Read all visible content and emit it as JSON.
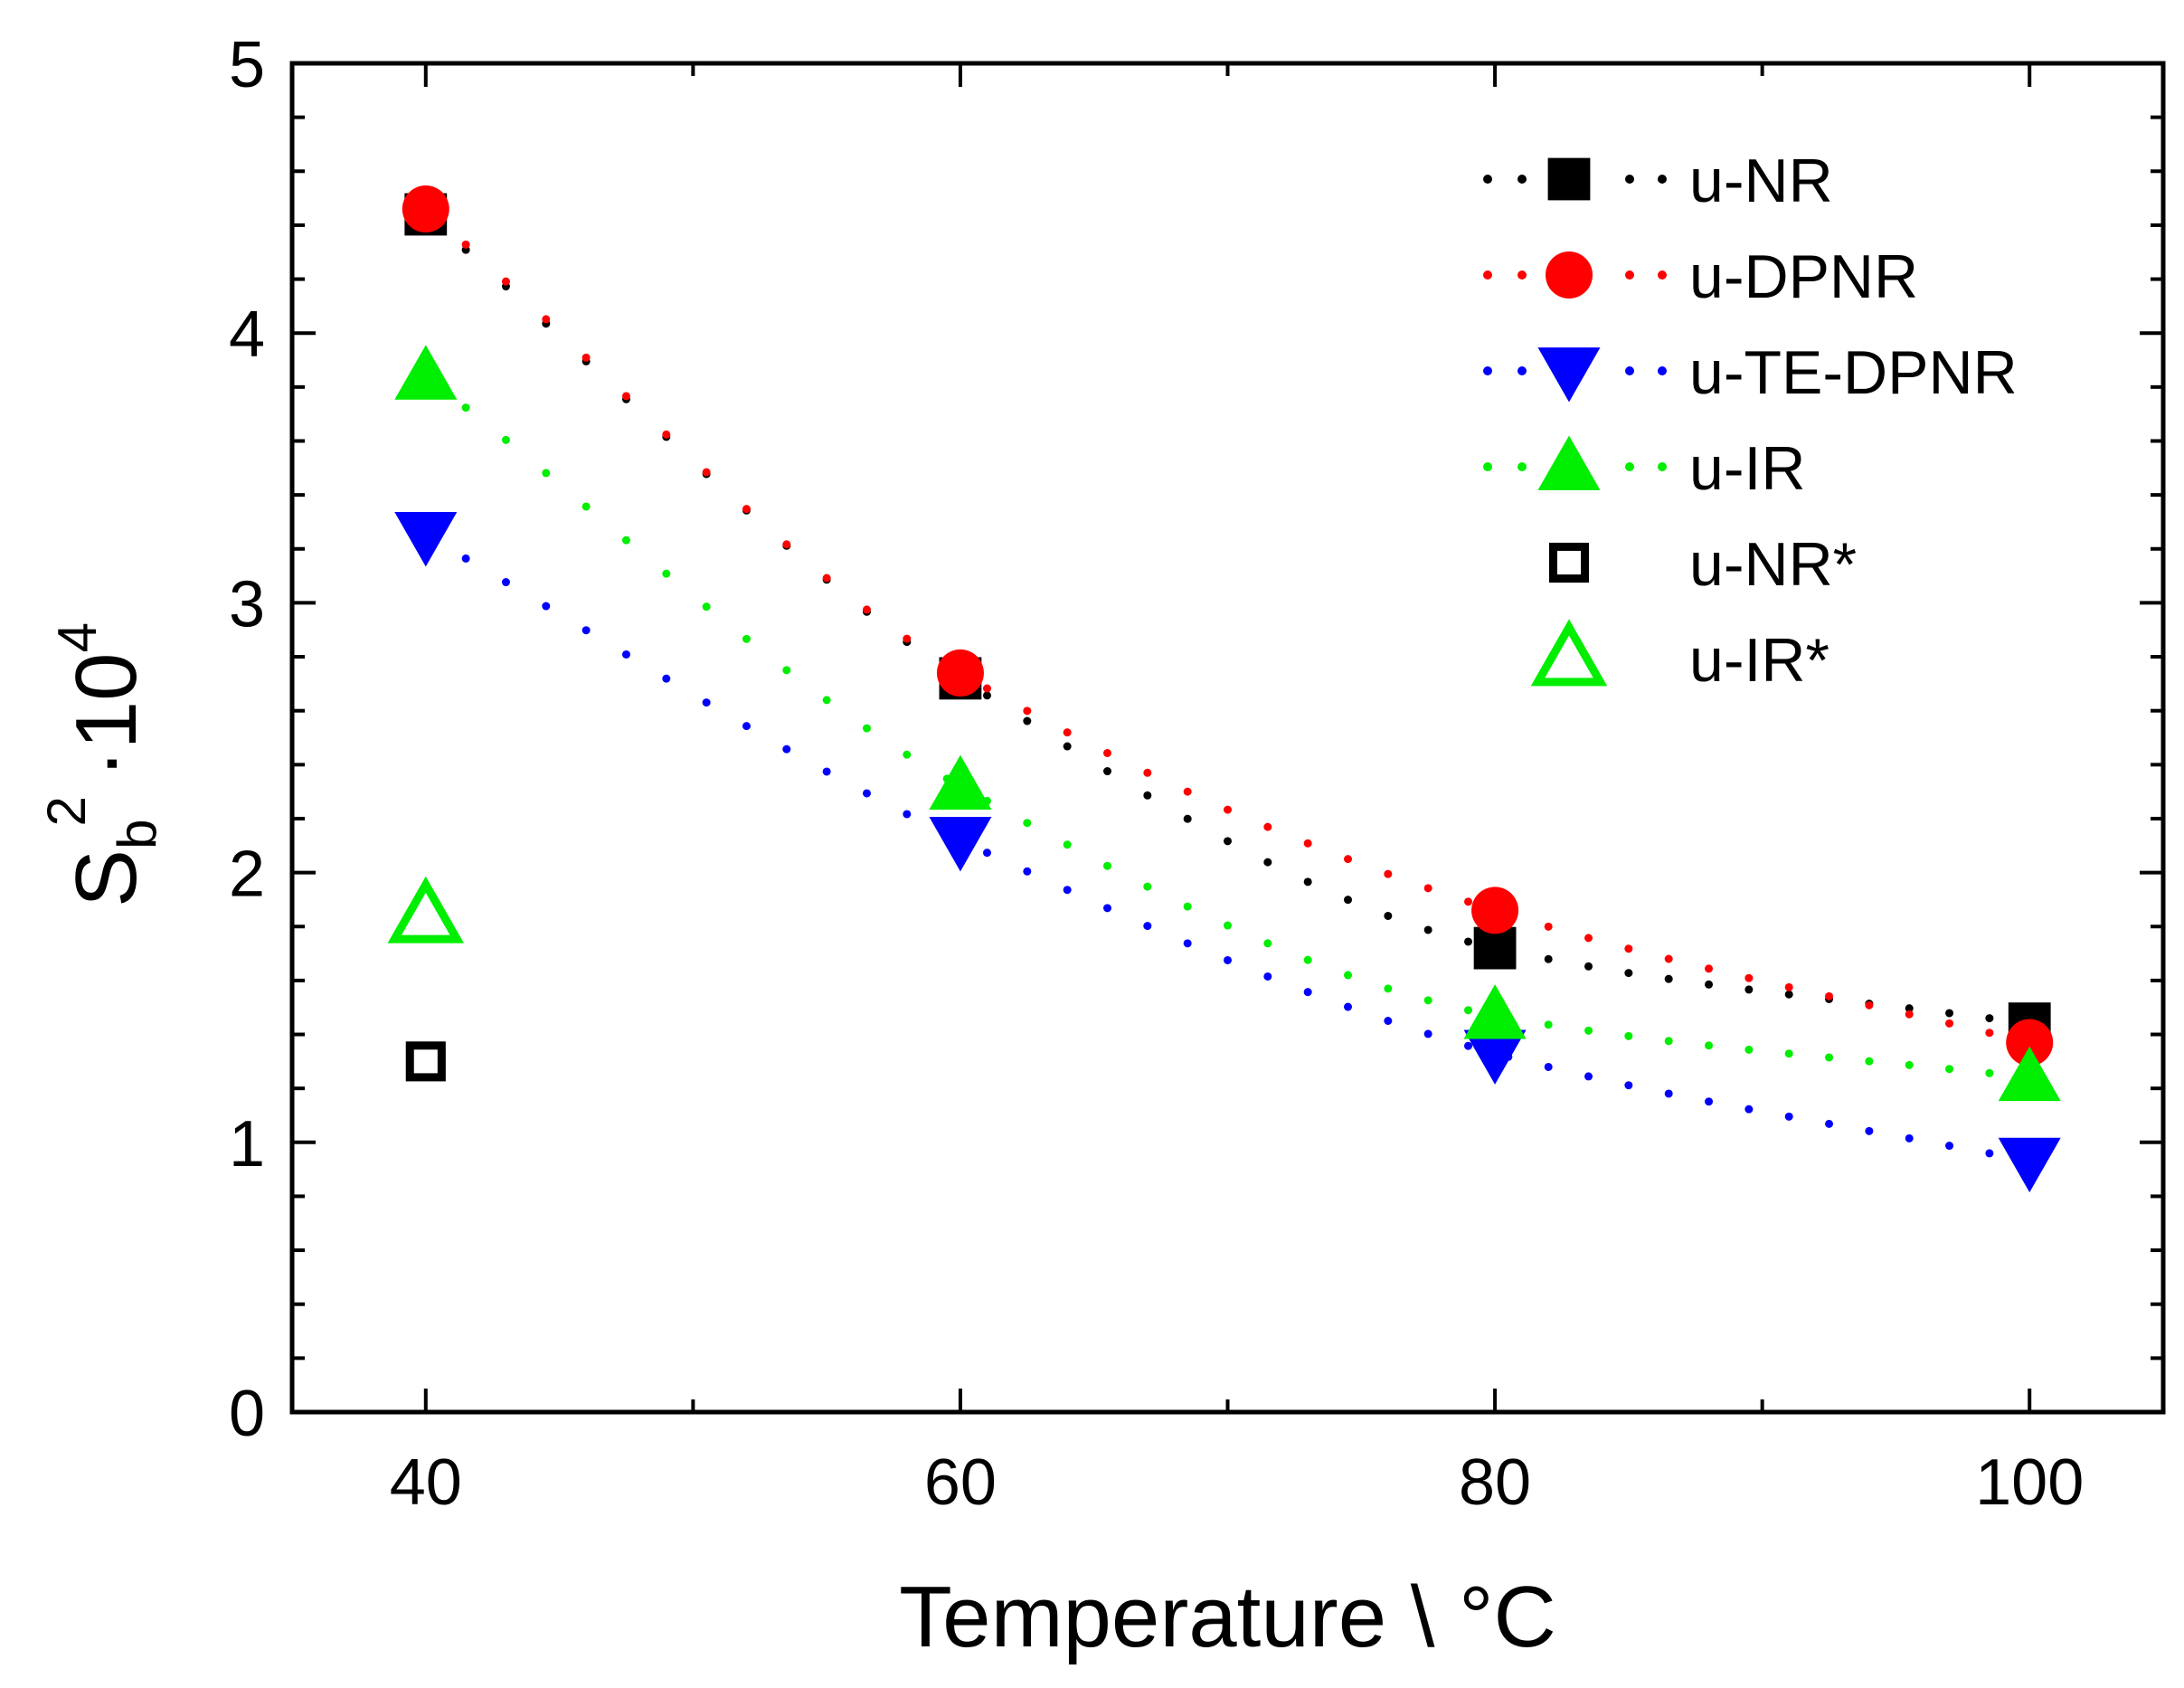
{
  "chart_data": {
    "type": "scatter",
    "xlabel": "Temperature \\ °C",
    "ylabel": {
      "base": "S",
      "subscript": "b",
      "superscript": "2",
      "factor": "·10",
      "factor_exp": "4"
    },
    "xlim": [
      35,
      105
    ],
    "ylim": [
      0,
      5
    ],
    "x_ticks": [
      40,
      60,
      80,
      100
    ],
    "y_ticks": [
      0,
      1,
      2,
      3,
      4,
      5
    ],
    "grid": false,
    "legend_position": "top-right",
    "series": [
      {
        "name": "u-NR",
        "x": [
          40,
          60,
          80,
          100
        ],
        "y": [
          4.44,
          2.72,
          1.72,
          1.44
        ],
        "marker": "square",
        "filled": true,
        "color": "#000000",
        "line": "dotted"
      },
      {
        "name": "u-DPNR",
        "x": [
          40,
          60,
          80,
          100
        ],
        "y": [
          4.46,
          2.74,
          1.86,
          1.37
        ],
        "marker": "circle",
        "filled": true,
        "color": "#ff0000",
        "line": "dotted"
      },
      {
        "name": "u-TE-DPNR",
        "x": [
          40,
          60,
          80,
          100
        ],
        "y": [
          3.25,
          2.12,
          1.33,
          0.93
        ],
        "marker": "triangle-down",
        "filled": true,
        "color": "#0000ff",
        "line": "dotted"
      },
      {
        "name": "u-IR",
        "x": [
          40,
          60,
          80,
          100
        ],
        "y": [
          3.84,
          2.32,
          1.47,
          1.24
        ],
        "marker": "triangle-up",
        "filled": true,
        "color": "#00ee00",
        "line": "dotted"
      },
      {
        "name": "u-NR*",
        "x": [
          40
        ],
        "y": [
          1.3
        ],
        "marker": "square",
        "filled": false,
        "color": "#000000",
        "line": "none"
      },
      {
        "name": "u-IR*",
        "x": [
          40
        ],
        "y": [
          1.84
        ],
        "marker": "triangle-up",
        "filled": false,
        "color": "#00ee00",
        "line": "none"
      }
    ]
  }
}
